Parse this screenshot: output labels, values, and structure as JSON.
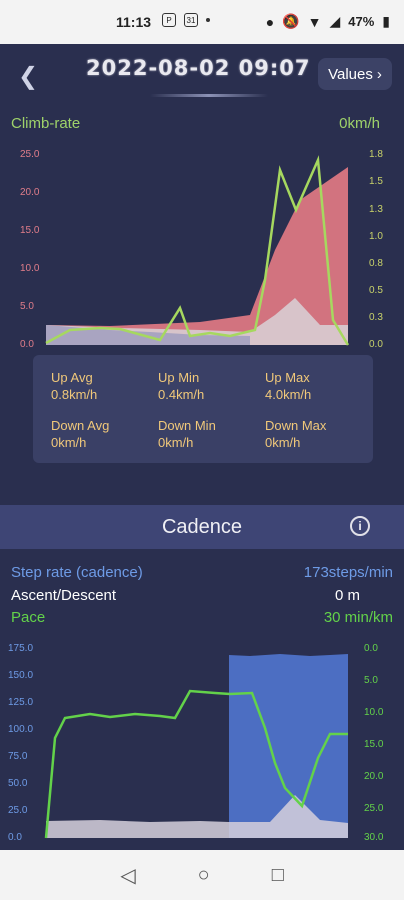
{
  "status": {
    "time": "11:13",
    "battery": "47%"
  },
  "header": {
    "title": "2022-08-02 09:07",
    "values_button": "Values"
  },
  "climb": {
    "label": "Climb-rate",
    "value": "0km/h",
    "left_ticks": [
      "25.0",
      "20.0",
      "15.0",
      "10.0",
      "5.0",
      "0.0"
    ],
    "right_ticks": [
      "1.8",
      "1.5",
      "1.3",
      "1.0",
      "0.8",
      "0.5",
      "0.3",
      "0.0"
    ],
    "stats": {
      "up_avg_label": "Up Avg",
      "up_avg": "0.8km/h",
      "up_min_label": "Up Min",
      "up_min": "0.4km/h",
      "up_max_label": "Up Max",
      "up_max": "4.0km/h",
      "down_avg_label": "Down Avg",
      "down_avg": "0km/h",
      "down_min_label": "Down Min",
      "down_min": "0km/h",
      "down_max_label": "Down Max",
      "down_max": "0km/h"
    }
  },
  "cadence": {
    "title": "Cadence",
    "legend": {
      "step_label": "Step rate (cadence)",
      "step_value": "173steps/min",
      "ascent_label": "Ascent/Descent",
      "ascent_value": "0 m",
      "pace_label": "Pace",
      "pace_value": "30 min/km"
    },
    "left_ticks": [
      "175.0",
      "150.0",
      "125.0",
      "100.0",
      "75.0",
      "50.0",
      "25.0",
      "0.0"
    ],
    "right_ticks": [
      "0.0",
      "5.0",
      "10.0",
      "15.0",
      "20.0",
      "25.0",
      "30.0"
    ]
  },
  "colors": {
    "background": "#2a2f4f",
    "accent_green": "#9ed26a",
    "pace_green": "#63d24a",
    "cadence_blue": "#6e9be6",
    "stat_orange": "#f0c87a",
    "climb_pink": "#d2737f"
  },
  "icons": {
    "back": "chevron-left-icon",
    "values_arrow": "chevron-right-icon",
    "info": "info-icon",
    "nav_back": "triangle-back-icon",
    "nav_home": "circle-home-icon",
    "nav_recent": "square-recent-icon"
  }
}
